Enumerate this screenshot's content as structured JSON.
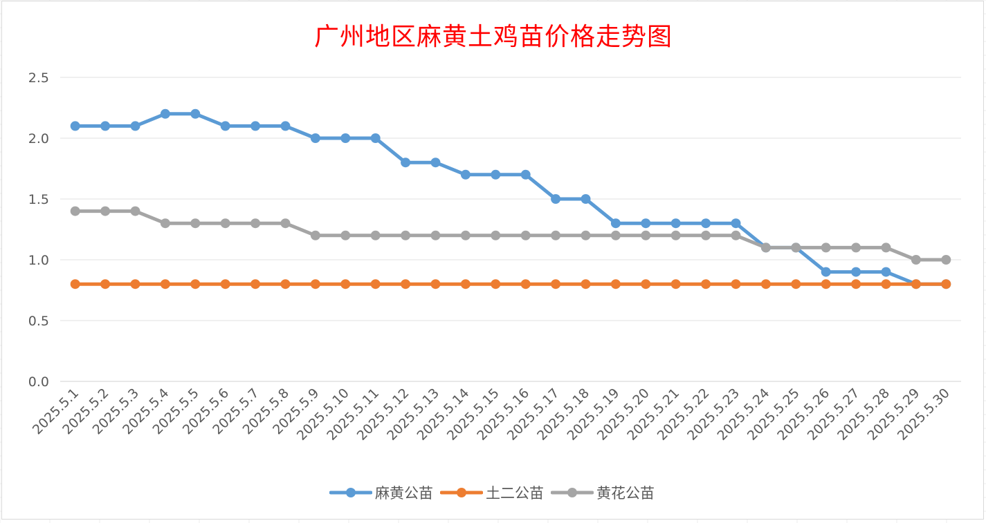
{
  "chart_data": {
    "type": "line",
    "title": "广州地区麻黄土鸡苗价格走势图",
    "xlabel": "",
    "ylabel": "",
    "ylim": [
      0,
      2.5
    ],
    "yticks": [
      "0.0",
      "0.5",
      "1.0",
      "1.5",
      "2.0",
      "2.5"
    ],
    "grid": true,
    "legend_position": "bottom",
    "categories": [
      "2025.5.1",
      "2025.5.2",
      "2025.5.3",
      "2025.5.4",
      "2025.5.5",
      "2025.5.6",
      "2025.5.7",
      "2025.5.8",
      "2025.5.9",
      "2025.5.10",
      "2025.5.11",
      "2025.5.12",
      "2025.5.13",
      "2025.5.14",
      "2025.5.15",
      "2025.5.16",
      "2025.5.17",
      "2025.5.18",
      "2025.5.19",
      "2025.5.20",
      "2025.5.21",
      "2025.5.22",
      "2025.5.23",
      "2025.5.24",
      "2025.5.25",
      "2025.5.26",
      "2025.5.27",
      "2025.5.28",
      "2025.5.29",
      "2025.5.30"
    ],
    "series": [
      {
        "name": "麻黄公苗",
        "color": "#5b9bd5",
        "values": [
          2.1,
          2.1,
          2.1,
          2.2,
          2.2,
          2.1,
          2.1,
          2.1,
          2.0,
          2.0,
          2.0,
          1.8,
          1.8,
          1.7,
          1.7,
          1.7,
          1.5,
          1.5,
          1.3,
          1.3,
          1.3,
          1.3,
          1.3,
          1.1,
          1.1,
          0.9,
          0.9,
          0.9,
          0.8,
          0.8
        ]
      },
      {
        "name": "土二公苗",
        "color": "#ed7d31",
        "values": [
          0.8,
          0.8,
          0.8,
          0.8,
          0.8,
          0.8,
          0.8,
          0.8,
          0.8,
          0.8,
          0.8,
          0.8,
          0.8,
          0.8,
          0.8,
          0.8,
          0.8,
          0.8,
          0.8,
          0.8,
          0.8,
          0.8,
          0.8,
          0.8,
          0.8,
          0.8,
          0.8,
          0.8,
          0.8,
          0.8
        ]
      },
      {
        "name": "黄花公苗",
        "color": "#a5a5a5",
        "values": [
          1.4,
          1.4,
          1.4,
          1.3,
          1.3,
          1.3,
          1.3,
          1.3,
          1.2,
          1.2,
          1.2,
          1.2,
          1.2,
          1.2,
          1.2,
          1.2,
          1.2,
          1.2,
          1.2,
          1.2,
          1.2,
          1.2,
          1.2,
          1.1,
          1.1,
          1.1,
          1.1,
          1.1,
          1.0,
          1.0
        ]
      }
    ]
  }
}
